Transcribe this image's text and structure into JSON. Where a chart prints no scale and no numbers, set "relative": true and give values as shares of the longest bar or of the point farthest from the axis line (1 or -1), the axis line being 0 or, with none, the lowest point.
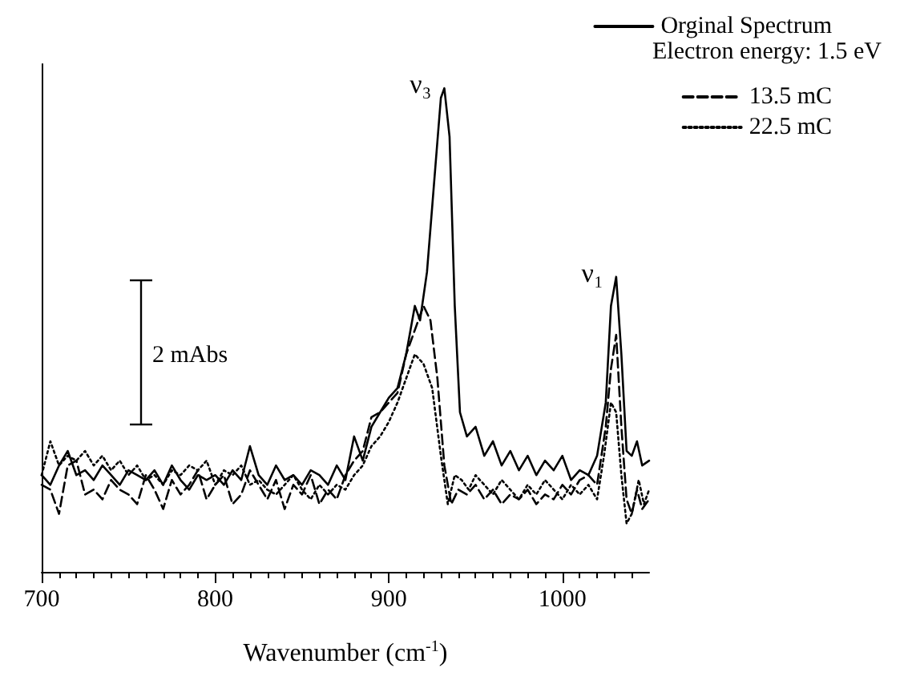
{
  "chart_data": {
    "type": "line",
    "relative": true,
    "xlabel": "Wavenumber (cm$^{-1}$)",
    "legend_title": "Electron energy: 1.5 eV",
    "legend": "top right",
    "marker": "none",
    "xlim": [
      700,
      1050
    ],
    "xticks": [
      700,
      800,
      900,
      1000
    ],
    "annotations": [
      {
        "text": "ν₃",
        "x": 932,
        "y": 1
      },
      {
        "text": "ν₁",
        "x": 1031,
        "y": 0.61
      },
      "2 mAbs"
    ],
    "series": [
      {
        "name": "Orginal Spectrum",
        "color": "#000000",
        "line_style": "solid",
        "x": [
          700,
          705,
          710,
          715,
          720,
          725,
          730,
          735,
          740,
          745,
          750,
          755,
          760,
          765,
          770,
          775,
          780,
          785,
          790,
          795,
          800,
          805,
          810,
          815,
          820,
          825,
          830,
          835,
          840,
          845,
          850,
          855,
          860,
          865,
          870,
          875,
          880,
          885,
          890,
          895,
          900,
          905,
          910,
          915,
          918,
          922,
          926,
          930,
          932,
          935,
          938,
          941,
          945,
          950,
          955,
          960,
          965,
          970,
          975,
          980,
          985,
          990,
          995,
          1000,
          1005,
          1010,
          1015,
          1020,
          1025,
          1028,
          1031,
          1034,
          1037,
          1040,
          1043,
          1046,
          1050
        ],
        "values": [
          0.2,
          0.18,
          0.22,
          0.25,
          0.2,
          0.21,
          0.19,
          0.22,
          0.2,
          0.18,
          0.21,
          0.2,
          0.19,
          0.21,
          0.18,
          0.22,
          0.19,
          0.17,
          0.2,
          0.19,
          0.2,
          0.18,
          0.21,
          0.19,
          0.26,
          0.2,
          0.18,
          0.22,
          0.19,
          0.2,
          0.18,
          0.21,
          0.2,
          0.18,
          0.22,
          0.19,
          0.28,
          0.23,
          0.3,
          0.33,
          0.36,
          0.38,
          0.45,
          0.55,
          0.52,
          0.62,
          0.8,
          0.98,
          1,
          0.9,
          0.55,
          0.33,
          0.28,
          0.3,
          0.24,
          0.27,
          0.22,
          0.25,
          0.21,
          0.24,
          0.2,
          0.23,
          0.21,
          0.24,
          0.19,
          0.21,
          0.2,
          0.24,
          0.35,
          0.55,
          0.61,
          0.45,
          0.25,
          0.24,
          0.27,
          0.22,
          0.23
        ]
      },
      {
        "name": "13.5 mC",
        "color": "#000000",
        "line_style": "dashed",
        "x": [
          700,
          705,
          710,
          715,
          720,
          725,
          730,
          735,
          740,
          745,
          750,
          755,
          760,
          765,
          770,
          775,
          780,
          785,
          790,
          795,
          800,
          805,
          810,
          815,
          820,
          825,
          830,
          835,
          840,
          845,
          850,
          855,
          860,
          865,
          870,
          875,
          880,
          885,
          890,
          895,
          900,
          905,
          910,
          915,
          920,
          924,
          928,
          932,
          936,
          940,
          945,
          950,
          955,
          960,
          965,
          970,
          975,
          980,
          985,
          990,
          995,
          1000,
          1005,
          1010,
          1015,
          1020,
          1025,
          1028,
          1031,
          1034,
          1037,
          1040,
          1043,
          1046,
          1050
        ],
        "values": [
          0.18,
          0.17,
          0.12,
          0.22,
          0.23,
          0.16,
          0.17,
          0.15,
          0.19,
          0.17,
          0.16,
          0.14,
          0.2,
          0.17,
          0.13,
          0.19,
          0.16,
          0.18,
          0.21,
          0.15,
          0.18,
          0.2,
          0.14,
          0.16,
          0.21,
          0.18,
          0.15,
          0.19,
          0.13,
          0.18,
          0.16,
          0.2,
          0.14,
          0.17,
          0.15,
          0.2,
          0.23,
          0.25,
          0.32,
          0.33,
          0.35,
          0.37,
          0.45,
          0.5,
          0.55,
          0.52,
          0.4,
          0.22,
          0.14,
          0.17,
          0.16,
          0.18,
          0.15,
          0.17,
          0.14,
          0.16,
          0.15,
          0.17,
          0.14,
          0.16,
          0.15,
          0.18,
          0.16,
          0.19,
          0.2,
          0.18,
          0.3,
          0.42,
          0.49,
          0.3,
          0.15,
          0.12,
          0.17,
          0.13,
          0.15
        ]
      },
      {
        "name": "22.5 mC",
        "color": "#000000",
        "line_style": "dotted",
        "x": [
          700,
          705,
          710,
          715,
          720,
          725,
          730,
          735,
          740,
          745,
          750,
          755,
          760,
          765,
          770,
          775,
          780,
          785,
          790,
          795,
          800,
          805,
          810,
          815,
          820,
          825,
          830,
          835,
          840,
          845,
          850,
          855,
          860,
          865,
          870,
          875,
          880,
          885,
          890,
          895,
          900,
          905,
          910,
          915,
          920,
          925,
          930,
          934,
          938,
          942,
          946,
          950,
          955,
          960,
          965,
          970,
          975,
          980,
          985,
          990,
          995,
          1000,
          1005,
          1010,
          1015,
          1020,
          1024,
          1028,
          1031,
          1034,
          1037,
          1040,
          1044,
          1047,
          1050
        ],
        "values": [
          0.2,
          0.27,
          0.22,
          0.24,
          0.23,
          0.25,
          0.22,
          0.24,
          0.21,
          0.23,
          0.2,
          0.22,
          0.19,
          0.2,
          0.18,
          0.21,
          0.2,
          0.22,
          0.21,
          0.23,
          0.18,
          0.21,
          0.2,
          0.22,
          0.18,
          0.19,
          0.17,
          0.16,
          0.18,
          0.2,
          0.17,
          0.15,
          0.18,
          0.16,
          0.18,
          0.17,
          0.2,
          0.22,
          0.26,
          0.28,
          0.31,
          0.35,
          0.4,
          0.45,
          0.43,
          0.38,
          0.24,
          0.14,
          0.2,
          0.19,
          0.17,
          0.2,
          0.18,
          0.16,
          0.19,
          0.17,
          0.15,
          0.18,
          0.16,
          0.19,
          0.17,
          0.15,
          0.18,
          0.16,
          0.18,
          0.15,
          0.24,
          0.35,
          0.33,
          0.2,
          0.1,
          0.12,
          0.19,
          0.14,
          0.17
        ]
      }
    ]
  }
}
